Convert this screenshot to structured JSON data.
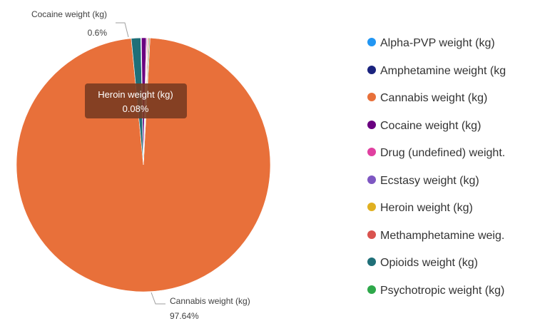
{
  "chart_data": {
    "type": "pie",
    "categories": [
      "Cannabis weight (kg)",
      "Opioids weight (kg)",
      "Alpha-PVP weight (kg)",
      "Amphetamine weight (kg)",
      "Cocaine weight (kg)",
      "Drug (undefined) weight (kg)",
      "Ecstasy weight (kg)",
      "Heroin weight (kg)",
      "Methamphetamine weight (kg)",
      "Psychotropic weight (kg)"
    ],
    "values": [
      97.64,
      1.2,
      0.03,
      0.05,
      0.6,
      0.1,
      0.08,
      0.08,
      0.12,
      0.1
    ],
    "colors": [
      "#e8703a",
      "#1f6f78",
      "#2196f3",
      "#1a237e",
      "#6a0080",
      "#e040a0",
      "#7e57c2",
      "#e0b020",
      "#d9534f",
      "#2ea84a"
    ],
    "legend": {
      "placement": "right",
      "items": [
        {
          "label": "Alpha-PVP weight (kg)",
          "color": "#2196f3"
        },
        {
          "label": "Amphetamine weight (kg",
          "color": "#1a237e"
        },
        {
          "label": "Cannabis weight (kg)",
          "color": "#e8703a"
        },
        {
          "label": "Cocaine weight (kg)",
          "color": "#6a0080"
        },
        {
          "label": "Drug (undefined) weight.",
          "color": "#e040a0"
        },
        {
          "label": "Ecstasy weight (kg)",
          "color": "#7e57c2"
        },
        {
          "label": "Heroin weight (kg)",
          "color": "#e0b020"
        },
        {
          "label": "Methamphetamine weig.",
          "color": "#d9534f"
        },
        {
          "label": "Opioids weight (kg)",
          "color": "#1f6f78"
        },
        {
          "label": "Psychotropic weight (kg)",
          "color": "#2ea84a"
        }
      ]
    },
    "callouts": [
      {
        "category": "Cocaine weight (kg)",
        "label": "Cocaine weight (kg)",
        "value_label": "0.6%"
      },
      {
        "category": "Cannabis weight (kg)",
        "label": "Cannabis weight (kg)",
        "value_label": "97.64%"
      }
    ],
    "tooltip": {
      "label": "Heroin weight (kg)",
      "value_label": "0.08%"
    }
  }
}
